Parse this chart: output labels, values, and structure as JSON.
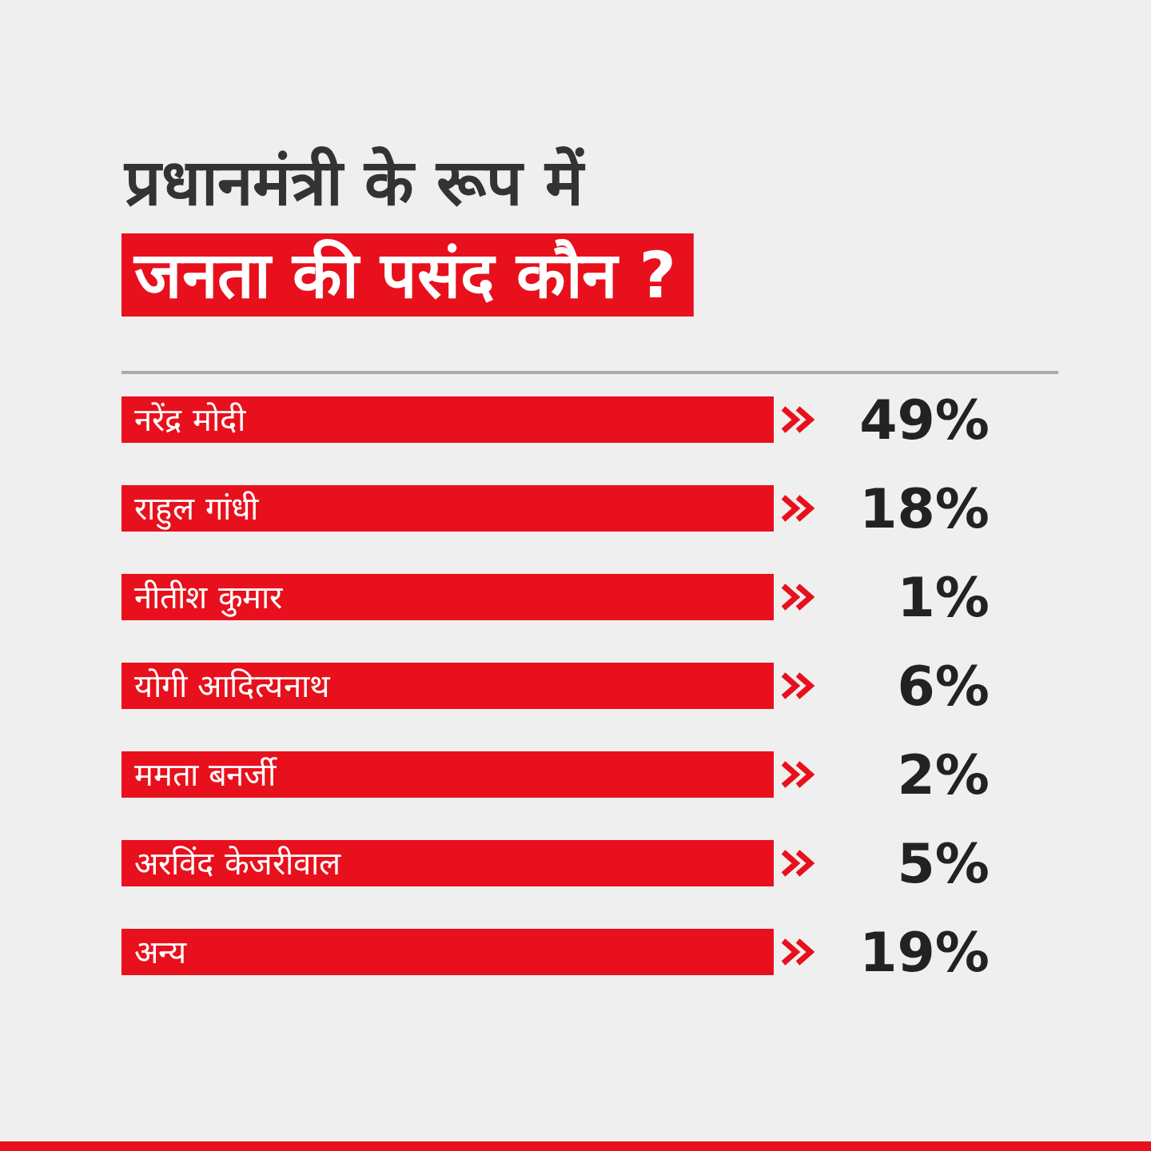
{
  "chart_data": {
    "type": "other",
    "title": "प्रधानमंत्री के रूप में",
    "subtitle": "जनता की पसंद कौन ?",
    "categories": [
      "नरेंद्र मोदी",
      "राहुल गांधी",
      "नीतीश कुमार",
      "योगी आदित्यनाथ",
      "ममता बनर्जी",
      "अरविंद केजरीवाल",
      "अन्य"
    ],
    "values": [
      49,
      18,
      1,
      6,
      2,
      5,
      19
    ],
    "value_labels": [
      "49%",
      "18%",
      "1%",
      "6%",
      "2%",
      "5%",
      "19%"
    ],
    "color": "#e8101c"
  }
}
